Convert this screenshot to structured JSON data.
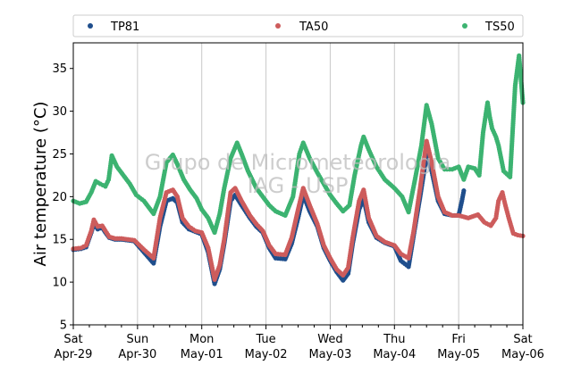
{
  "chart_data": {
    "type": "scatter",
    "ylabel": "Air temperature (°C)",
    "xlabel": "",
    "ylim": [
      5,
      38
    ],
    "xlim": [
      0,
      7
    ],
    "grid": "vertical at day boundaries",
    "legend_placement": "top, above plot",
    "yticks": [
      5,
      10,
      15,
      20,
      25,
      30,
      35
    ],
    "xticks": [
      {
        "x": 0,
        "day": "Sat",
        "date": "Apr-29"
      },
      {
        "x": 1,
        "day": "Sun",
        "date": "Apr-30"
      },
      {
        "x": 2,
        "day": "Mon",
        "date": "May-01"
      },
      {
        "x": 3,
        "day": "Tue",
        "date": "May-02"
      },
      {
        "x": 4,
        "day": "Wed",
        "date": "May-03"
      },
      {
        "x": 5,
        "day": "Thu",
        "date": "May-04"
      },
      {
        "x": 6,
        "day": "Fri",
        "date": "May-05"
      },
      {
        "x": 7,
        "day": "Sat",
        "date": "May-06"
      }
    ],
    "watermark": [
      "Grupo de Micrometeorologia",
      "IAG - USP"
    ],
    "series": [
      {
        "name": "TP81",
        "color": "#1f4e8c",
        "points": [
          [
            0,
            13.8
          ],
          [
            0.12,
            13.9
          ],
          [
            0.2,
            14.1
          ],
          [
            0.28,
            15.8
          ],
          [
            0.32,
            16.8
          ],
          [
            0.38,
            16.2
          ],
          [
            0.45,
            16.4
          ],
          [
            0.5,
            15.8
          ],
          [
            0.56,
            15.2
          ],
          [
            0.65,
            15.0
          ],
          [
            0.75,
            15.0
          ],
          [
            0.85,
            14.9
          ],
          [
            0.95,
            14.8
          ],
          [
            1.1,
            13.5
          ],
          [
            1.25,
            12.2
          ],
          [
            1.35,
            16.5
          ],
          [
            1.45,
            19.5
          ],
          [
            1.55,
            19.8
          ],
          [
            1.62,
            19.3
          ],
          [
            1.7,
            17.0
          ],
          [
            1.8,
            16.2
          ],
          [
            1.9,
            15.9
          ],
          [
            2.0,
            15.6
          ],
          [
            2.1,
            13.5
          ],
          [
            2.2,
            9.8
          ],
          [
            2.28,
            11.5
          ],
          [
            2.35,
            14.5
          ],
          [
            2.45,
            19.5
          ],
          [
            2.52,
            20.2
          ],
          [
            2.62,
            19.0
          ],
          [
            2.75,
            17.5
          ],
          [
            2.85,
            16.5
          ],
          [
            2.95,
            15.8
          ],
          [
            3.05,
            14.0
          ],
          [
            3.15,
            12.8
          ],
          [
            3.3,
            12.7
          ],
          [
            3.4,
            14.5
          ],
          [
            3.5,
            17.5
          ],
          [
            3.58,
            20.2
          ],
          [
            3.68,
            18.3
          ],
          [
            3.8,
            16.5
          ],
          [
            3.9,
            14.0
          ],
          [
            4.0,
            12.5
          ],
          [
            4.1,
            11.2
          ],
          [
            4.2,
            10.2
          ],
          [
            4.28,
            11.0
          ],
          [
            4.35,
            14.5
          ],
          [
            4.45,
            18.5
          ],
          [
            4.52,
            19.8
          ],
          [
            4.6,
            17.0
          ],
          [
            4.72,
            15.2
          ],
          [
            4.85,
            14.6
          ],
          [
            5.0,
            14.2
          ],
          [
            5.1,
            12.5
          ],
          [
            5.22,
            11.8
          ],
          [
            5.3,
            15.5
          ],
          [
            5.4,
            20.0
          ],
          [
            5.5,
            24.8
          ],
          [
            5.58,
            23.0
          ],
          [
            5.68,
            19.5
          ],
          [
            5.78,
            18.0
          ],
          [
            5.9,
            17.8
          ],
          [
            6.0,
            17.8
          ],
          [
            6.05,
            19.5
          ],
          [
            6.08,
            20.7
          ]
        ]
      },
      {
        "name": "TA50",
        "color": "#cd5c5c",
        "points": [
          [
            0,
            13.9
          ],
          [
            0.12,
            14.0
          ],
          [
            0.2,
            14.3
          ],
          [
            0.28,
            16.0
          ],
          [
            0.32,
            17.3
          ],
          [
            0.38,
            16.5
          ],
          [
            0.45,
            16.6
          ],
          [
            0.5,
            16.0
          ],
          [
            0.56,
            15.3
          ],
          [
            0.65,
            15.1
          ],
          [
            0.75,
            15.1
          ],
          [
            0.85,
            15.0
          ],
          [
            0.95,
            14.9
          ],
          [
            1.1,
            13.8
          ],
          [
            1.25,
            12.8
          ],
          [
            1.35,
            17.5
          ],
          [
            1.45,
            20.5
          ],
          [
            1.55,
            20.8
          ],
          [
            1.62,
            20.0
          ],
          [
            1.7,
            17.5
          ],
          [
            1.8,
            16.5
          ],
          [
            1.9,
            16.0
          ],
          [
            2.0,
            15.8
          ],
          [
            2.1,
            14.0
          ],
          [
            2.2,
            10.3
          ],
          [
            2.28,
            12.0
          ],
          [
            2.35,
            15.0
          ],
          [
            2.45,
            20.5
          ],
          [
            2.52,
            21.0
          ],
          [
            2.62,
            19.5
          ],
          [
            2.75,
            17.8
          ],
          [
            2.85,
            16.8
          ],
          [
            2.95,
            16.0
          ],
          [
            3.05,
            14.3
          ],
          [
            3.15,
            13.3
          ],
          [
            3.3,
            13.2
          ],
          [
            3.4,
            15.2
          ],
          [
            3.5,
            18.5
          ],
          [
            3.58,
            21.0
          ],
          [
            3.68,
            19.0
          ],
          [
            3.8,
            16.8
          ],
          [
            3.9,
            14.3
          ],
          [
            4.0,
            12.8
          ],
          [
            4.1,
            11.5
          ],
          [
            4.2,
            10.8
          ],
          [
            4.28,
            11.7
          ],
          [
            4.35,
            15.2
          ],
          [
            4.45,
            19.5
          ],
          [
            4.52,
            20.8
          ],
          [
            4.6,
            17.5
          ],
          [
            4.72,
            15.4
          ],
          [
            4.85,
            14.7
          ],
          [
            5.0,
            14.3
          ],
          [
            5.1,
            13.3
          ],
          [
            5.22,
            12.8
          ],
          [
            5.3,
            16.0
          ],
          [
            5.4,
            21.0
          ],
          [
            5.5,
            26.5
          ],
          [
            5.58,
            24.0
          ],
          [
            5.68,
            20.0
          ],
          [
            5.78,
            18.2
          ],
          [
            5.9,
            17.8
          ],
          [
            6.0,
            17.8
          ],
          [
            6.15,
            17.5
          ],
          [
            6.3,
            17.9
          ],
          [
            6.4,
            17.0
          ],
          [
            6.5,
            16.6
          ],
          [
            6.58,
            17.5
          ],
          [
            6.62,
            19.5
          ],
          [
            6.68,
            20.5
          ],
          [
            6.72,
            19.2
          ],
          [
            6.78,
            17.5
          ],
          [
            6.85,
            15.7
          ],
          [
            6.92,
            15.5
          ],
          [
            7.0,
            15.4
          ]
        ]
      },
      {
        "name": "TS50",
        "color": "#3cb371",
        "points": [
          [
            0,
            19.5
          ],
          [
            0.1,
            19.2
          ],
          [
            0.2,
            19.4
          ],
          [
            0.28,
            20.5
          ],
          [
            0.35,
            21.8
          ],
          [
            0.42,
            21.5
          ],
          [
            0.5,
            21.2
          ],
          [
            0.55,
            22.0
          ],
          [
            0.6,
            24.8
          ],
          [
            0.68,
            23.5
          ],
          [
            0.78,
            22.5
          ],
          [
            0.88,
            21.5
          ],
          [
            0.98,
            20.2
          ],
          [
            1.1,
            19.5
          ],
          [
            1.25,
            18.0
          ],
          [
            1.35,
            20.0
          ],
          [
            1.45,
            24.0
          ],
          [
            1.55,
            24.9
          ],
          [
            1.62,
            23.8
          ],
          [
            1.72,
            22.0
          ],
          [
            1.82,
            20.8
          ],
          [
            1.92,
            19.8
          ],
          [
            2.0,
            18.5
          ],
          [
            2.1,
            17.5
          ],
          [
            2.2,
            15.8
          ],
          [
            2.28,
            18.0
          ],
          [
            2.35,
            21.0
          ],
          [
            2.45,
            24.5
          ],
          [
            2.55,
            26.3
          ],
          [
            2.62,
            25.0
          ],
          [
            2.72,
            23.0
          ],
          [
            2.85,
            21.0
          ],
          [
            2.95,
            20.0
          ],
          [
            3.05,
            19.0
          ],
          [
            3.15,
            18.3
          ],
          [
            3.3,
            17.8
          ],
          [
            3.42,
            20.0
          ],
          [
            3.52,
            25.0
          ],
          [
            3.58,
            26.3
          ],
          [
            3.68,
            24.5
          ],
          [
            3.8,
            22.8
          ],
          [
            3.9,
            21.5
          ],
          [
            4.0,
            20.2
          ],
          [
            4.1,
            19.2
          ],
          [
            4.2,
            18.3
          ],
          [
            4.3,
            19.0
          ],
          [
            4.38,
            22.5
          ],
          [
            4.48,
            26.0
          ],
          [
            4.52,
            27.0
          ],
          [
            4.6,
            25.5
          ],
          [
            4.72,
            23.5
          ],
          [
            4.85,
            22.0
          ],
          [
            5.0,
            21.0
          ],
          [
            5.12,
            20.0
          ],
          [
            5.22,
            18.2
          ],
          [
            5.32,
            22.0
          ],
          [
            5.42,
            26.0
          ],
          [
            5.5,
            30.7
          ],
          [
            5.58,
            28.5
          ],
          [
            5.68,
            24.5
          ],
          [
            5.78,
            23.2
          ],
          [
            5.9,
            23.2
          ],
          [
            6.0,
            23.5
          ],
          [
            6.08,
            22.0
          ],
          [
            6.15,
            23.5
          ],
          [
            6.25,
            23.3
          ],
          [
            6.32,
            22.5
          ],
          [
            6.38,
            27.5
          ],
          [
            6.45,
            31.0
          ],
          [
            6.48,
            29.5
          ],
          [
            6.52,
            28.0
          ],
          [
            6.58,
            27.0
          ],
          [
            6.62,
            26.0
          ],
          [
            6.7,
            23.0
          ],
          [
            6.8,
            22.3
          ],
          [
            6.88,
            33.0
          ],
          [
            6.94,
            36.5
          ],
          [
            7.0,
            31.0
          ]
        ]
      }
    ]
  }
}
